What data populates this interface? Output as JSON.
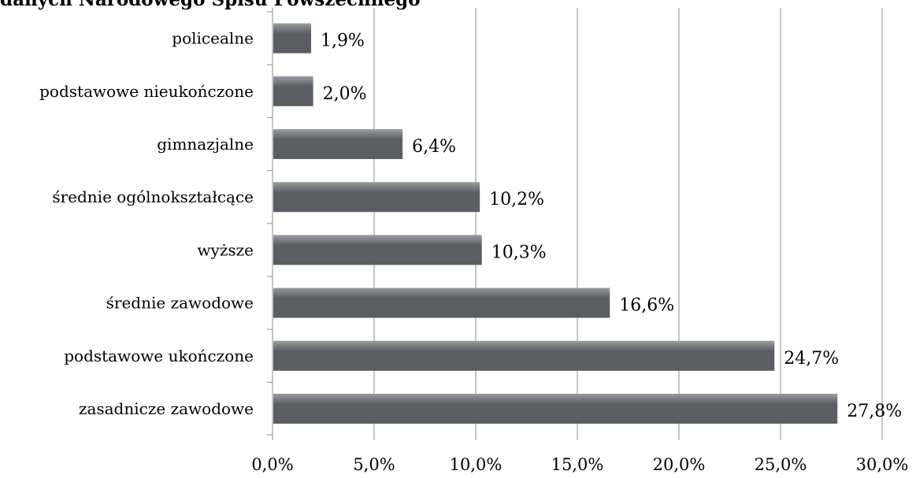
{
  "chart_data": {
    "type": "bar",
    "orientation": "horizontal",
    "title": "danych Narodowego Spisu Powszechnego",
    "xlabel": "",
    "ylabel": "",
    "categories": [
      "policealne",
      "podstawowe nieukończone",
      "gimnazjalne",
      "średnie ogólnokształcące",
      "wyższe",
      "średnie zawodowe",
      "podstawowe ukończone",
      "zasadnicze zawodowe"
    ],
    "values": [
      1.9,
      2.0,
      6.4,
      10.2,
      10.3,
      16.6,
      24.7,
      27.8
    ],
    "value_labels": [
      "1,9%",
      "2,0%",
      "6,4%",
      "10,2%",
      "10,3%",
      "16,6%",
      "24,7%",
      "27,8%"
    ],
    "xlim": [
      0,
      30
    ],
    "x_ticks": [
      0,
      5,
      10,
      15,
      20,
      25,
      30
    ],
    "x_tick_labels": [
      "0,0%",
      "5,0%",
      "10,0%",
      "15,0%",
      "20,0%",
      "25,0%",
      "30,0%"
    ],
    "grid": "vertical",
    "legend": "none",
    "colors": {
      "bar": "#5b5d64",
      "bar_highlight": "#9a9ca3",
      "grid": "#8c8c8c",
      "axis": "#8c8c8c"
    }
  }
}
